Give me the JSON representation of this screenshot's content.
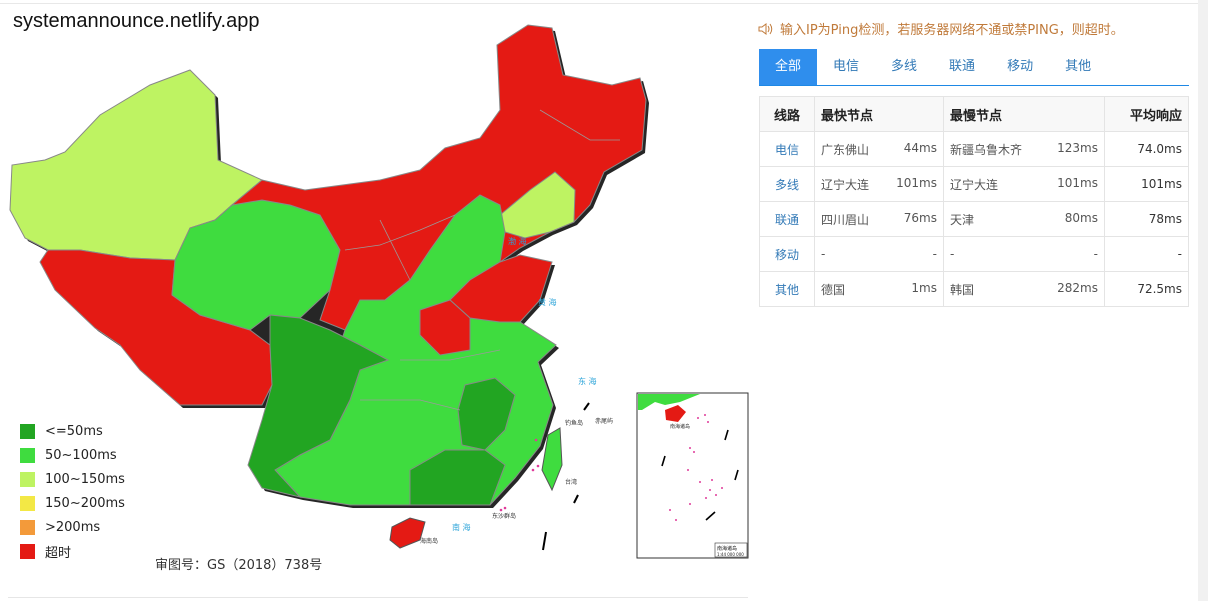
{
  "site": {
    "title": "systemannounce.netlify.app"
  },
  "notice": {
    "text": "输入IP为Ping检测，若服务器网络不通或禁PING，则超时。"
  },
  "tabs": [
    {
      "label": "全部",
      "active": true
    },
    {
      "label": "电信"
    },
    {
      "label": "多线"
    },
    {
      "label": "联通"
    },
    {
      "label": "移动"
    },
    {
      "label": "其他"
    }
  ],
  "table": {
    "headers": {
      "line": "线路",
      "fastest": "最快节点",
      "slowest": "最慢节点",
      "avg": "平均响应"
    },
    "rows": [
      {
        "line": "电信",
        "fast_node": "广东佛山",
        "fast_ms": "44ms",
        "slow_node": "新疆乌鲁木齐",
        "slow_ms": "123ms",
        "avg": "74.0ms"
      },
      {
        "line": "多线",
        "fast_node": "辽宁大连",
        "fast_ms": "101ms",
        "slow_node": "辽宁大连",
        "slow_ms": "101ms",
        "avg": "101ms"
      },
      {
        "line": "联通",
        "fast_node": "四川眉山",
        "fast_ms": "76ms",
        "slow_node": "天津",
        "slow_ms": "80ms",
        "avg": "78ms"
      },
      {
        "line": "移动",
        "fast_node": "-",
        "fast_ms": "-",
        "slow_node": "-",
        "slow_ms": "-",
        "avg": "-"
      },
      {
        "line": "其他",
        "fast_node": "德国",
        "fast_ms": "1ms",
        "slow_node": "韩国",
        "slow_ms": "282ms",
        "avg": "72.5ms"
      }
    ]
  },
  "legend": [
    {
      "label": "<=50ms",
      "color": "#22a522"
    },
    {
      "label": "50~100ms",
      "color": "#3fdc3f"
    },
    {
      "label": "100~150ms",
      "color": "#bef362"
    },
    {
      "label": "150~200ms",
      "color": "#f3e845"
    },
    {
      "label": ">200ms",
      "color": "#f39a3a"
    },
    {
      "label": "超时",
      "color": "#e41a14"
    }
  ],
  "map": {
    "approval": "审图号：GS（2018）738号",
    "sea_labels": [
      "渤海",
      "黄海",
      "东海",
      "南海"
    ],
    "island_labels": [
      "钓鱼岛",
      "赤尾屿",
      "台湾",
      "东沙群岛",
      "海南岛"
    ],
    "inset_labels": [
      "南海诸岛",
      "1:44 000 000"
    ],
    "colors": {
      "timeout": "#e41a14",
      "fast": "#3fdc3f",
      "fastest": "#22a522",
      "mid": "#bef362",
      "sea": "#2aa3d8"
    }
  }
}
